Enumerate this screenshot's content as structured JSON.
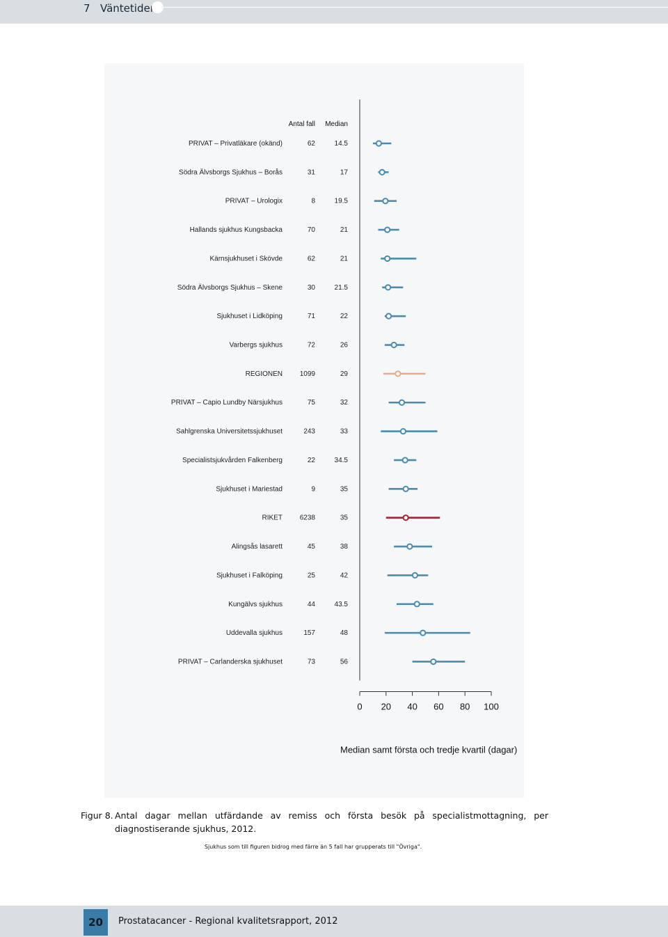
{
  "header": {
    "chapter_number": "7",
    "chapter_title": "Väntetider"
  },
  "chart_data": {
    "type": "forest",
    "columns": {
      "count_header": "Antal fall",
      "median_header": "Median"
    },
    "xlabel": "Median samt första och tredje kvartil (dagar)",
    "xlim": [
      0,
      100
    ],
    "xticks": [
      0,
      20,
      40,
      60,
      80,
      100
    ],
    "rows": [
      {
        "label": "PRIVAT – Privatläkare (okänd)",
        "count": "62",
        "median": "14.5",
        "q1": 10,
        "q3": 24,
        "color": "#4a8bb0"
      },
      {
        "label": "Södra Älvsborgs Sjukhus – Borås",
        "count": "31",
        "median": "17",
        "q1": 14,
        "q3": 22,
        "color": "#4a8bb0"
      },
      {
        "label": "PRIVAT – Urologix",
        "count": "8",
        "median": "19.5",
        "q1": 11,
        "q3": 28,
        "color": "#4a8bb0"
      },
      {
        "label": "Hallands sjukhus Kungsbacka",
        "count": "70",
        "median": "21",
        "q1": 14,
        "q3": 30,
        "color": "#4a8bb0"
      },
      {
        "label": "Kärnsjukhuset i Skövde",
        "count": "62",
        "median": "21",
        "q1": 16,
        "q3": 43,
        "color": "#4a8bb0"
      },
      {
        "label": "Södra Älvsborgs Sjukhus – Skene",
        "count": "30",
        "median": "21.5",
        "q1": 17,
        "q3": 33,
        "color": "#4a8bb0"
      },
      {
        "label": "Sjukhuset i Lidköping",
        "count": "71",
        "median": "22",
        "q1": 19,
        "q3": 35,
        "color": "#4a8bb0"
      },
      {
        "label": "Varbergs sjukhus",
        "count": "72",
        "median": "26",
        "q1": 19,
        "q3": 34,
        "color": "#4a8bb0"
      },
      {
        "label": "REGIONEN",
        "count": "1099",
        "median": "29",
        "q1": 18,
        "q3": 50,
        "color": "#e8a88a"
      },
      {
        "label": "PRIVAT – Capio Lundby Närsjukhus",
        "count": "75",
        "median": "32",
        "q1": 22,
        "q3": 50,
        "color": "#4a8bb0"
      },
      {
        "label": "Sahlgrenska Universitetssjukhuset",
        "count": "243",
        "median": "33",
        "q1": 16,
        "q3": 59,
        "color": "#4a8bb0"
      },
      {
        "label": "Specialistsjukvården Falkenberg",
        "count": "22",
        "median": "34.5",
        "q1": 26,
        "q3": 43,
        "color": "#4a8bb0"
      },
      {
        "label": "Sjukhuset i Mariestad",
        "count": "9",
        "median": "35",
        "q1": 22,
        "q3": 44,
        "color": "#4a8bb0"
      },
      {
        "label": "RIKET",
        "count": "6238",
        "median": "35",
        "q1": 20,
        "q3": 61,
        "color": "#a8243a"
      },
      {
        "label": "Alingsås lasarett",
        "count": "45",
        "median": "38",
        "q1": 26,
        "q3": 55,
        "color": "#4a8bb0"
      },
      {
        "label": "Sjukhuset i Falköping",
        "count": "25",
        "median": "42",
        "q1": 21,
        "q3": 52,
        "color": "#4a8bb0"
      },
      {
        "label": "Kungälvs sjukhus",
        "count": "44",
        "median": "43.5",
        "q1": 28,
        "q3": 56,
        "color": "#4a8bb0"
      },
      {
        "label": "Uddevalla sjukhus",
        "count": "157",
        "median": "48",
        "q1": 19,
        "q3": 84,
        "color": "#4a8bb0"
      },
      {
        "label": "PRIVAT – Carlanderska sjukhuset",
        "count": "73",
        "median": "56",
        "q1": 40,
        "q3": 80,
        "color": "#4a8bb0"
      }
    ]
  },
  "caption": {
    "figure_label": "Figur 8.",
    "text": "Antal dagar mellan utfärdande av remiss och första besök på specialistmottagning, per diagnostiserande sjukhus, 2012.",
    "note": "Sjukhus som till figuren bidrog med färre än 5 fall har grupperats till \"Övriga\"."
  },
  "footer": {
    "page_number": "20",
    "title": "Prostatacancer - Regional kvalitetsrapport, 2012"
  }
}
